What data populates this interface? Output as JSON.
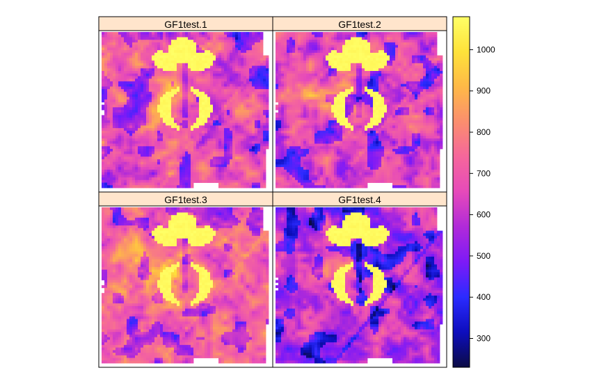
{
  "chart_data": {
    "type": "heatmap",
    "layout": "2x2 lattice (levelplot)",
    "panels": [
      {
        "title": "GF1test.1",
        "value_range": [
          430,
          1080
        ]
      },
      {
        "title": "GF1test.2",
        "value_range": [
          430,
          1080
        ]
      },
      {
        "title": "GF1test.3",
        "value_range": [
          430,
          1080
        ]
      },
      {
        "title": "GF1test.4",
        "value_range": [
          250,
          1080
        ]
      }
    ],
    "colorbar": {
      "range": [
        230,
        1080
      ],
      "ticks": [
        "300",
        "400",
        "500",
        "600",
        "700",
        "800",
        "900",
        "1000"
      ],
      "tick_values": [
        300,
        400,
        500,
        600,
        700,
        800,
        900,
        1000
      ],
      "colormap": [
        "#0c0c45",
        "#0d0dbd",
        "#2b2bff",
        "#7d1af7",
        "#b02ad9",
        "#e64aba",
        "#f5669c",
        "#fb8e6e",
        "#feb947",
        "#fee23a",
        "#ffff66"
      ]
    },
    "strip_color": "#ffe5cc"
  }
}
